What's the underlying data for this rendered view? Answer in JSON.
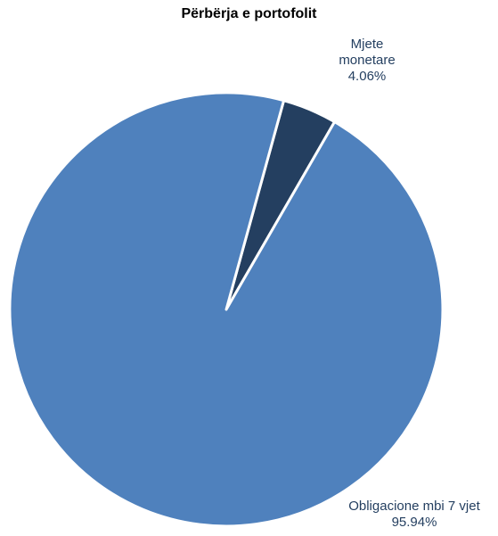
{
  "chart_data": {
    "type": "pie",
    "title": "Përbërja e portofolit",
    "slices": [
      {
        "label_lines": [
          "Mjete",
          "monetare"
        ],
        "value_label": "4.06%",
        "value": 4.06,
        "color": "#243f60"
      },
      {
        "label_lines": [
          "Obligacione mbi 7 vjet"
        ],
        "value_label": "95.94%",
        "value": 95.94,
        "color": "#4f81bd"
      }
    ],
    "label_color": "#243f60",
    "border_color": "#ffffff"
  }
}
